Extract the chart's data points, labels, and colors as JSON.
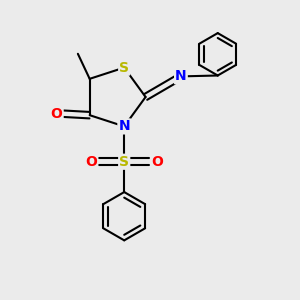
{
  "bg_color": "#ebebeb",
  "atom_colors": {
    "S": "#b8b800",
    "N": "#0000ff",
    "O": "#ff0000",
    "C": "#000000"
  },
  "bond_color": "#000000",
  "bond_width": 1.5,
  "figsize": [
    3.0,
    3.0
  ],
  "dpi": 100
}
